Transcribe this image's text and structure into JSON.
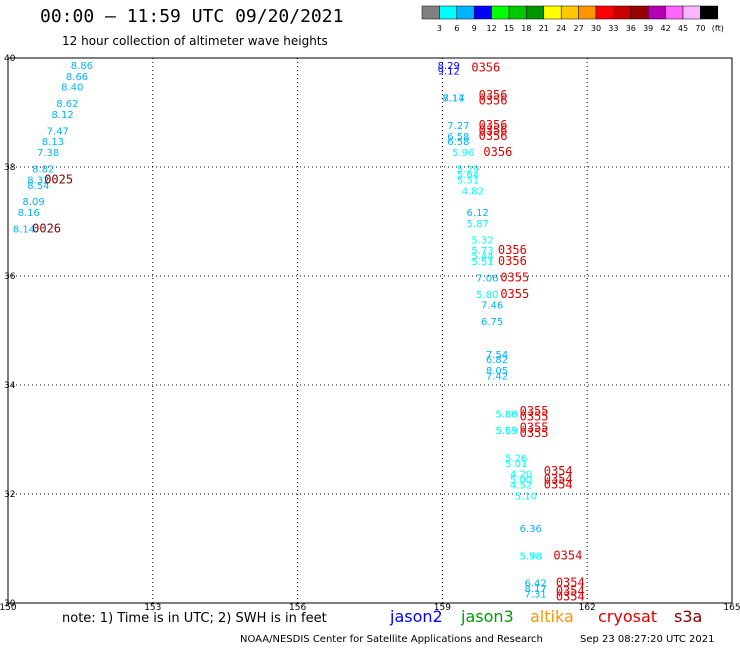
{
  "title": "00:00 – 11:59 UTC 09/20/2021",
  "subtitle": "12 hour collection of altimeter wave heights",
  "legend_scale": {
    "labels": [
      "3",
      "6",
      "9",
      "12",
      "15",
      "18",
      "21",
      "24",
      "27",
      "30",
      "33",
      "36",
      "39",
      "42",
      "45",
      "70",
      "(ft)"
    ],
    "colors": [
      "#808080",
      "#00ffff",
      "#00b4ff",
      "#0000ff",
      "#00ff00",
      "#00c800",
      "#009600",
      "#ffff00",
      "#ffc800",
      "#ff9600",
      "#ff0000",
      "#c80000",
      "#960000",
      "#b400b4",
      "#ff64ff",
      "#ffb4ff",
      "#000000"
    ]
  },
  "note": "note: 1) Time is in UTC; 2) SWH is in feet",
  "satellites": [
    {
      "name": "jason2",
      "color": "#0000ff"
    },
    {
      "name": "jason3",
      "color": "#00a000"
    },
    {
      "name": "altika",
      "color": "#ff9600"
    },
    {
      "name": "cryosat",
      "color": "#e00000"
    },
    {
      "name": "s3a",
      "color": "#800000"
    }
  ],
  "footer_left": "NOAA/NESDIS Center for Satellite Applications and Research",
  "footer_right": "Sep 23 08:27:20 UTC 2021",
  "chart_data": {
    "type": "scatter",
    "xlim": [
      150,
      165
    ],
    "ylim": [
      30,
      40
    ],
    "x_ticks": [
      "150",
      "153",
      "156",
      "159",
      "162",
      "165"
    ],
    "x_tick_values": [
      150,
      153,
      156,
      159,
      162,
      165
    ],
    "y_ticks": [
      "30",
      "32",
      "34",
      "36",
      "38",
      "40"
    ],
    "y_tick_values": [
      30,
      32,
      34,
      36,
      38,
      40
    ],
    "grid": "dotted",
    "wave_heights": [
      {
        "lon": 151.3,
        "lat": 39.8,
        "label": "8.86",
        "color": "#00b4ff"
      },
      {
        "lon": 151.2,
        "lat": 39.6,
        "label": "8.66",
        "color": "#00b4ff"
      },
      {
        "lon": 151.1,
        "lat": 39.4,
        "label": "8.40",
        "color": "#00b4ff"
      },
      {
        "lon": 151.0,
        "lat": 39.1,
        "label": "8.62",
        "color": "#00b4ff"
      },
      {
        "lon": 150.9,
        "lat": 38.9,
        "label": "8.12",
        "color": "#00b4ff"
      },
      {
        "lon": 150.8,
        "lat": 38.6,
        "label": "7.47",
        "color": "#00b4ff"
      },
      {
        "lon": 150.7,
        "lat": 38.4,
        "label": "8.13",
        "color": "#00b4ff"
      },
      {
        "lon": 150.6,
        "lat": 38.2,
        "label": "7.38",
        "color": "#00b4ff"
      },
      {
        "lon": 150.5,
        "lat": 37.9,
        "label": "8.82",
        "color": "#00b4ff"
      },
      {
        "lon": 150.4,
        "lat": 37.7,
        "label": "8.32",
        "color": "#00b4ff"
      },
      {
        "lon": 150.4,
        "lat": 37.6,
        "label": "8.54",
        "color": "#00b4ff"
      },
      {
        "lon": 150.3,
        "lat": 37.3,
        "label": "8.09",
        "color": "#00b4ff"
      },
      {
        "lon": 150.2,
        "lat": 37.1,
        "label": "8.16",
        "color": "#00b4ff"
      },
      {
        "lon": 150.1,
        "lat": 36.8,
        "label": "8.14",
        "color": "#00b4ff"
      },
      {
        "lon": 158.9,
        "lat": 39.8,
        "label": "8.29",
        "color": "#0000ff"
      },
      {
        "lon": 158.9,
        "lat": 39.7,
        "label": "9.12",
        "color": "#0000ff"
      },
      {
        "lon": 159.0,
        "lat": 39.2,
        "label": "8.14",
        "color": "#00b4ff"
      },
      {
        "lon": 159.0,
        "lat": 39.2,
        "label": "7.17",
        "color": "#00b4ff"
      },
      {
        "lon": 159.1,
        "lat": 38.7,
        "label": "7.27",
        "color": "#00b4ff"
      },
      {
        "lon": 159.1,
        "lat": 38.5,
        "label": "6.58",
        "color": "#00b4ff"
      },
      {
        "lon": 159.1,
        "lat": 38.4,
        "label": "6.58",
        "color": "#00b4ff"
      },
      {
        "lon": 159.2,
        "lat": 38.2,
        "label": "5.96",
        "color": "#00ffff"
      },
      {
        "lon": 159.3,
        "lat": 37.9,
        "label": "5.29",
        "color": "#00ffff"
      },
      {
        "lon": 159.3,
        "lat": 37.8,
        "label": "5.64",
        "color": "#00ffff"
      },
      {
        "lon": 159.3,
        "lat": 37.7,
        "label": "5.51",
        "color": "#00ffff"
      },
      {
        "lon": 159.4,
        "lat": 37.5,
        "label": "4.82",
        "color": "#00ffff"
      },
      {
        "lon": 159.5,
        "lat": 37.1,
        "label": "6.12",
        "color": "#00b4ff"
      },
      {
        "lon": 159.5,
        "lat": 36.9,
        "label": "5.87",
        "color": "#00ffff"
      },
      {
        "lon": 159.6,
        "lat": 36.6,
        "label": "5.32",
        "color": "#00ffff"
      },
      {
        "lon": 159.6,
        "lat": 36.4,
        "label": "5.73",
        "color": "#00ffff"
      },
      {
        "lon": 159.6,
        "lat": 36.3,
        "label": "5.44",
        "color": "#00ffff"
      },
      {
        "lon": 159.6,
        "lat": 36.2,
        "label": "5.51",
        "color": "#00ffff"
      },
      {
        "lon": 159.7,
        "lat": 35.9,
        "label": "7.06",
        "color": "#00b4ff"
      },
      {
        "lon": 159.7,
        "lat": 35.6,
        "label": "5.80",
        "color": "#00ffff"
      },
      {
        "lon": 159.8,
        "lat": 35.4,
        "label": "7.46",
        "color": "#00b4ff"
      },
      {
        "lon": 159.8,
        "lat": 35.1,
        "label": "6.75",
        "color": "#00b4ff"
      },
      {
        "lon": 159.9,
        "lat": 34.5,
        "label": "7.54",
        "color": "#00b4ff"
      },
      {
        "lon": 159.9,
        "lat": 34.4,
        "label": "6.82",
        "color": "#00b4ff"
      },
      {
        "lon": 159.9,
        "lat": 34.2,
        "label": "8.05",
        "color": "#00b4ff"
      },
      {
        "lon": 159.9,
        "lat": 34.1,
        "label": "7.42",
        "color": "#00b4ff"
      },
      {
        "lon": 160.1,
        "lat": 33.4,
        "label": "5.86",
        "color": "#00ffff"
      },
      {
        "lon": 160.1,
        "lat": 33.4,
        "label": "5.88",
        "color": "#00ffff"
      },
      {
        "lon": 160.1,
        "lat": 33.1,
        "label": "5.59",
        "color": "#00ffff"
      },
      {
        "lon": 160.1,
        "lat": 33.1,
        "label": "5.63",
        "color": "#00ffff"
      },
      {
        "lon": 160.3,
        "lat": 32.6,
        "label": "5.26",
        "color": "#00ffff"
      },
      {
        "lon": 160.3,
        "lat": 32.5,
        "label": "5.01",
        "color": "#00ffff"
      },
      {
        "lon": 160.4,
        "lat": 32.3,
        "label": "4.20",
        "color": "#00ffff"
      },
      {
        "lon": 160.4,
        "lat": 32.2,
        "label": "5.00",
        "color": "#00ffff"
      },
      {
        "lon": 160.4,
        "lat": 32.1,
        "label": "4.52",
        "color": "#00ffff"
      },
      {
        "lon": 160.5,
        "lat": 31.9,
        "label": "5.10",
        "color": "#00ffff"
      },
      {
        "lon": 160.6,
        "lat": 31.3,
        "label": "6.36",
        "color": "#00b4ff"
      },
      {
        "lon": 160.6,
        "lat": 30.8,
        "label": "5.98",
        "color": "#00ffff"
      },
      {
        "lon": 160.6,
        "lat": 30.8,
        "label": "5.78",
        "color": "#00ffff"
      },
      {
        "lon": 160.7,
        "lat": 30.3,
        "label": "6.42",
        "color": "#00b4ff"
      },
      {
        "lon": 160.7,
        "lat": 30.2,
        "label": "8.17",
        "color": "#00b4ff"
      },
      {
        "lon": 160.7,
        "lat": 30.1,
        "label": "7.31",
        "color": "#00b4ff"
      }
    ],
    "time_labels": [
      {
        "lon": 150.75,
        "lat": 37.7,
        "label": "0025",
        "color": "#800000"
      },
      {
        "lon": 150.5,
        "lat": 36.8,
        "label": "0026",
        "color": "#800000"
      },
      {
        "lon": 159.6,
        "lat": 39.75,
        "label": "0356",
        "color": "#e00000"
      },
      {
        "lon": 159.75,
        "lat": 39.25,
        "label": "0356",
        "color": "#e00000"
      },
      {
        "lon": 159.75,
        "lat": 39.15,
        "label": "0356",
        "color": "#e00000"
      },
      {
        "lon": 159.75,
        "lat": 38.7,
        "label": "0356",
        "color": "#e00000"
      },
      {
        "lon": 159.75,
        "lat": 38.6,
        "label": "0356",
        "color": "#e00000"
      },
      {
        "lon": 159.75,
        "lat": 38.5,
        "label": "0356",
        "color": "#e00000"
      },
      {
        "lon": 159.85,
        "lat": 38.2,
        "label": "0356",
        "color": "#e00000"
      },
      {
        "lon": 160.15,
        "lat": 36.4,
        "label": "0356",
        "color": "#e00000"
      },
      {
        "lon": 160.15,
        "lat": 36.2,
        "label": "0356",
        "color": "#e00000"
      },
      {
        "lon": 160.2,
        "lat": 35.9,
        "label": "0355",
        "color": "#e00000"
      },
      {
        "lon": 160.2,
        "lat": 35.6,
        "label": "0355",
        "color": "#e00000"
      },
      {
        "lon": 160.6,
        "lat": 33.45,
        "label": "0355",
        "color": "#e00000"
      },
      {
        "lon": 160.6,
        "lat": 33.35,
        "label": "0355",
        "color": "#e00000"
      },
      {
        "lon": 160.6,
        "lat": 33.15,
        "label": "0355",
        "color": "#e00000"
      },
      {
        "lon": 160.6,
        "lat": 33.05,
        "label": "0355",
        "color": "#e00000"
      },
      {
        "lon": 161.1,
        "lat": 32.35,
        "label": "0354",
        "color": "#e00000"
      },
      {
        "lon": 161.1,
        "lat": 32.2,
        "label": "0354",
        "color": "#e00000"
      },
      {
        "lon": 161.1,
        "lat": 32.1,
        "label": "0354",
        "color": "#e00000"
      },
      {
        "lon": 161.3,
        "lat": 30.8,
        "label": "0354",
        "color": "#e00000"
      },
      {
        "lon": 161.35,
        "lat": 30.3,
        "label": "0354",
        "color": "#e00000"
      },
      {
        "lon": 161.35,
        "lat": 30.15,
        "label": "0354",
        "color": "#e00000"
      },
      {
        "lon": 161.35,
        "lat": 30.05,
        "label": "0354",
        "color": "#e00000"
      }
    ]
  }
}
